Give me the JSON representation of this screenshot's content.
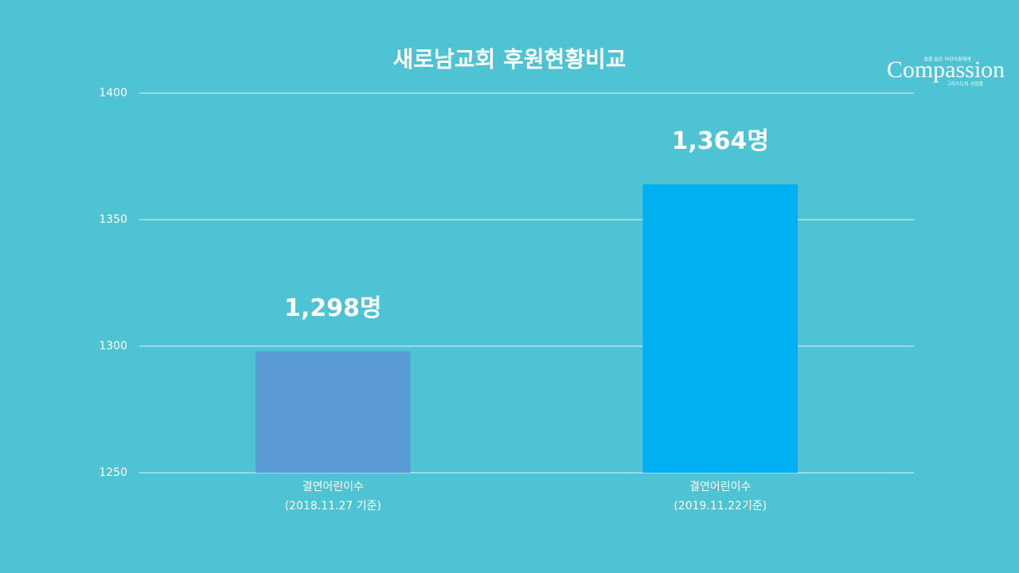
{
  "chart_data": {
    "type": "bar",
    "title": "새로남교회 후원현황비교",
    "categories": [
      [
        "결연어린이수",
        "(2018.11.27 기준)"
      ],
      [
        "결연어린이수",
        "(2019.11.22기준)"
      ]
    ],
    "values": [
      1298,
      1364
    ],
    "value_labels": [
      "1,298명",
      "1,364명"
    ],
    "colors": [
      "#5b9bd5",
      "#00b0f0"
    ],
    "ylim": [
      1250,
      1400
    ],
    "yticks": [
      1250,
      1300,
      1350,
      1400
    ],
    "grid": true
  },
  "logo": {
    "name": "Compassion",
    "tagline_top": "꿈을 잃은 어린이들에게",
    "tagline_bottom": "그리스도의 사랑을"
  }
}
